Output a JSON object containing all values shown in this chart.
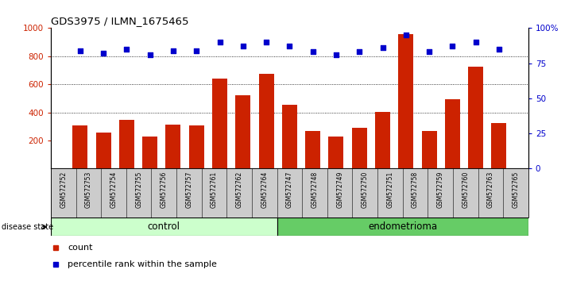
{
  "title": "GDS3975 / ILMN_1675465",
  "samples": [
    "GSM572752",
    "GSM572753",
    "GSM572754",
    "GSM572755",
    "GSM572756",
    "GSM572757",
    "GSM572761",
    "GSM572762",
    "GSM572764",
    "GSM572747",
    "GSM572748",
    "GSM572749",
    "GSM572750",
    "GSM572751",
    "GSM572758",
    "GSM572759",
    "GSM572760",
    "GSM572763",
    "GSM572765"
  ],
  "counts": [
    310,
    258,
    345,
    228,
    315,
    308,
    640,
    522,
    672,
    452,
    268,
    228,
    292,
    402,
    955,
    268,
    492,
    728,
    322
  ],
  "percentiles": [
    84,
    82,
    85,
    81,
    84,
    84,
    90,
    87,
    90,
    87,
    83,
    81,
    83,
    86,
    95,
    83,
    87,
    90,
    85
  ],
  "groups": [
    "control",
    "control",
    "control",
    "control",
    "control",
    "control",
    "control",
    "control",
    "control",
    "endometrioma",
    "endometrioma",
    "endometrioma",
    "endometrioma",
    "endometrioma",
    "endometrioma",
    "endometrioma",
    "endometrioma",
    "endometrioma",
    "endometrioma"
  ],
  "control_color": "#ccffcc",
  "endometrioma_color": "#66cc66",
  "bar_color": "#cc2200",
  "dot_color": "#0000cc",
  "ylim_left": [
    0,
    1000
  ],
  "ylim_right": [
    0,
    100
  ],
  "yticks_left": [
    200,
    400,
    600,
    800,
    1000
  ],
  "yticks_right": [
    0,
    25,
    50,
    75,
    100
  ],
  "ytick_labels_right": [
    "0",
    "25",
    "50",
    "75",
    "100%"
  ],
  "grid_values": [
    400,
    600,
    800
  ],
  "bg_color": "#cccccc"
}
